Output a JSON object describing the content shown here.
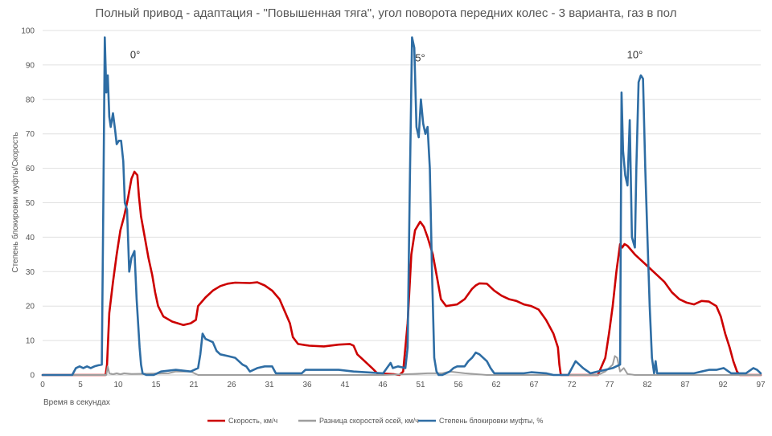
{
  "chart_data": {
    "type": "line",
    "title": "Полный привод - адаптация - \"Повышенная тяга\",  угол поворота передних колес  - 3 варианта, газ в пол",
    "xlabel": "Время в секундах",
    "ylabel": "Степень блокировки муфты/Скорость",
    "xlim": [
      0,
      97
    ],
    "ylim": [
      0,
      100
    ],
    "x_ticks": [
      0,
      5,
      10,
      15,
      21,
      26,
      31,
      36,
      41,
      46,
      51,
      56,
      62,
      67,
      72,
      77,
      82,
      87,
      92,
      97
    ],
    "y_ticks": [
      0,
      10,
      20,
      30,
      40,
      50,
      60,
      70,
      80,
      90,
      100
    ],
    "grid": "horizontal",
    "legend_position": "bottom",
    "annotations": [
      {
        "text": "0°",
        "x": 12.5,
        "y": 92
      },
      {
        "text": "5°",
        "x": 51,
        "y": 91
      },
      {
        "text": "10°",
        "x": 80,
        "y": 92
      }
    ],
    "series": [
      {
        "name": "Скорость, км/ч",
        "color": "#cc0000",
        "points": [
          [
            0,
            0
          ],
          [
            8.5,
            0
          ],
          [
            8.7,
            3
          ],
          [
            9,
            18
          ],
          [
            9.5,
            27
          ],
          [
            10,
            35
          ],
          [
            10.5,
            42
          ],
          [
            11,
            46
          ],
          [
            11.5,
            51
          ],
          [
            12,
            57
          ],
          [
            12.4,
            59
          ],
          [
            12.8,
            58
          ],
          [
            13,
            52
          ],
          [
            13.3,
            46
          ],
          [
            13.8,
            40
          ],
          [
            14.3,
            34
          ],
          [
            14.8,
            29
          ],
          [
            15.2,
            24
          ],
          [
            15.6,
            20
          ],
          [
            16.3,
            17
          ],
          [
            17.5,
            15.5
          ],
          [
            19,
            14.5
          ],
          [
            20,
            15
          ],
          [
            20.7,
            16
          ],
          [
            21,
            20
          ],
          [
            22,
            22.5
          ],
          [
            23,
            24.5
          ],
          [
            24,
            25.8
          ],
          [
            25,
            26.5
          ],
          [
            26,
            26.8
          ],
          [
            28,
            26.7
          ],
          [
            29,
            26.9
          ],
          [
            30,
            26
          ],
          [
            31,
            24.5
          ],
          [
            32,
            22
          ],
          [
            32.8,
            18
          ],
          [
            33.4,
            15
          ],
          [
            33.8,
            11
          ],
          [
            34.5,
            9
          ],
          [
            36,
            8.5
          ],
          [
            38,
            8.3
          ],
          [
            40,
            8.8
          ],
          [
            41.5,
            9
          ],
          [
            42,
            8.5
          ],
          [
            42.5,
            6
          ],
          [
            43.5,
            4
          ],
          [
            44.5,
            2
          ],
          [
            45.2,
            0.5
          ],
          [
            47.5,
            0.2
          ],
          [
            48.2,
            0
          ],
          [
            48.7,
            1
          ],
          [
            49.3,
            15
          ],
          [
            49.8,
            35
          ],
          [
            50.3,
            42
          ],
          [
            51,
            44.5
          ],
          [
            51.5,
            43
          ],
          [
            52,
            40
          ],
          [
            52.7,
            35
          ],
          [
            53.3,
            28
          ],
          [
            53.8,
            22
          ],
          [
            54.5,
            20
          ],
          [
            56,
            20.5
          ],
          [
            57,
            22
          ],
          [
            58,
            25
          ],
          [
            58.5,
            26
          ],
          [
            59,
            26.6
          ],
          [
            60,
            26.5
          ],
          [
            61,
            24.5
          ],
          [
            62,
            23
          ],
          [
            63,
            22
          ],
          [
            64,
            21.5
          ],
          [
            65,
            20.5
          ],
          [
            66,
            20
          ],
          [
            67,
            19
          ],
          [
            68,
            16
          ],
          [
            69,
            12
          ],
          [
            69.6,
            8
          ],
          [
            69.8,
            3
          ],
          [
            70,
            0
          ],
          [
            75,
            0
          ],
          [
            76,
            5
          ],
          [
            76.5,
            12
          ],
          [
            77,
            20
          ],
          [
            77.5,
            30
          ],
          [
            78,
            38
          ],
          [
            78.3,
            37
          ],
          [
            78.6,
            38
          ],
          [
            79,
            37.5
          ],
          [
            80,
            35
          ],
          [
            81,
            33
          ],
          [
            82,
            31
          ],
          [
            83,
            29
          ],
          [
            84,
            27
          ],
          [
            85,
            24
          ],
          [
            86,
            22
          ],
          [
            87,
            21
          ],
          [
            88,
            20.5
          ],
          [
            88.5,
            21
          ],
          [
            89,
            21.5
          ],
          [
            90,
            21.3
          ],
          [
            91,
            20
          ],
          [
            91.6,
            17
          ],
          [
            92.2,
            12
          ],
          [
            92.8,
            8
          ],
          [
            93.3,
            4
          ],
          [
            93.8,
            1
          ],
          [
            94.2,
            0
          ],
          [
            97,
            0
          ]
        ]
      },
      {
        "name": "Разница скоростей осей, км/ч",
        "color": "#9e9e9e",
        "points": [
          [
            0,
            0
          ],
          [
            8.6,
            0
          ],
          [
            8.8,
            2.5
          ],
          [
            9,
            0.5
          ],
          [
            9.5,
            0.2
          ],
          [
            10,
            0.5
          ],
          [
            10.5,
            0.2
          ],
          [
            11,
            0.5
          ],
          [
            12,
            0.3
          ],
          [
            17,
            0.5
          ],
          [
            18,
            1
          ],
          [
            19,
            1
          ],
          [
            20,
            1
          ],
          [
            20.5,
            0.5
          ],
          [
            21,
            0
          ],
          [
            46,
            0
          ],
          [
            50,
            0.3
          ],
          [
            52,
            0.5
          ],
          [
            54,
            0.5
          ],
          [
            55,
            1
          ],
          [
            57,
            0.5
          ],
          [
            60,
            0
          ],
          [
            75,
            0
          ],
          [
            76,
            1
          ],
          [
            77,
            3
          ],
          [
            77.3,
            5.5
          ],
          [
            77.6,
            5
          ],
          [
            78,
            1
          ],
          [
            78.5,
            2
          ],
          [
            79,
            0.3
          ],
          [
            80,
            0
          ],
          [
            97,
            0
          ]
        ]
      },
      {
        "name": "Степень блокировки муфты, %",
        "color": "#2e6da4",
        "points": [
          [
            0,
            0
          ],
          [
            4,
            0
          ],
          [
            4.5,
            2
          ],
          [
            5,
            2.5
          ],
          [
            5.5,
            2
          ],
          [
            6,
            2.5
          ],
          [
            6.5,
            2
          ],
          [
            7,
            2.5
          ],
          [
            7.5,
            2.8
          ],
          [
            8,
            3
          ],
          [
            8.2,
            50
          ],
          [
            8.4,
            98
          ],
          [
            8.6,
            82
          ],
          [
            8.8,
            87
          ],
          [
            9,
            75
          ],
          [
            9.2,
            72
          ],
          [
            9.5,
            76
          ],
          [
            9.8,
            71
          ],
          [
            10,
            67
          ],
          [
            10.3,
            68
          ],
          [
            10.6,
            68
          ],
          [
            10.9,
            62
          ],
          [
            11.1,
            50
          ],
          [
            11.4,
            48
          ],
          [
            11.7,
            30
          ],
          [
            12,
            34
          ],
          [
            12.4,
            36
          ],
          [
            12.7,
            22
          ],
          [
            13.1,
            8
          ],
          [
            13.3,
            3
          ],
          [
            13.5,
            0.5
          ],
          [
            14,
            0
          ],
          [
            15,
            0
          ],
          [
            16,
            1
          ],
          [
            18,
            1.5
          ],
          [
            20,
            1
          ],
          [
            21,
            2
          ],
          [
            21.3,
            6
          ],
          [
            21.6,
            12
          ],
          [
            22,
            10.5
          ],
          [
            22.5,
            10
          ],
          [
            23,
            9.5
          ],
          [
            23.5,
            7
          ],
          [
            24,
            6
          ],
          [
            25,
            5.5
          ],
          [
            26,
            5
          ],
          [
            27,
            3
          ],
          [
            27.5,
            2.5
          ],
          [
            28,
            1
          ],
          [
            29,
            2
          ],
          [
            30,
            2.5
          ],
          [
            31,
            2.5
          ],
          [
            31.5,
            0.5
          ],
          [
            35,
            0.5
          ],
          [
            35.5,
            1.5
          ],
          [
            37,
            1.5
          ],
          [
            40,
            1.5
          ],
          [
            42,
            1
          ],
          [
            46,
            0.5
          ],
          [
            46.5,
            2
          ],
          [
            47,
            3.5
          ],
          [
            47.3,
            2
          ],
          [
            48,
            2.5
          ],
          [
            49,
            2
          ],
          [
            49.3,
            8
          ],
          [
            49.6,
            55
          ],
          [
            49.9,
            98
          ],
          [
            50.2,
            95
          ],
          [
            50.5,
            72
          ],
          [
            50.8,
            69
          ],
          [
            51.1,
            80
          ],
          [
            51.4,
            73
          ],
          [
            51.7,
            70
          ],
          [
            52,
            72
          ],
          [
            52.3,
            60
          ],
          [
            52.6,
            30
          ],
          [
            52.9,
            5
          ],
          [
            53.2,
            1
          ],
          [
            53.5,
            0
          ],
          [
            54,
            0
          ],
          [
            55,
            1
          ],
          [
            55.5,
            2
          ],
          [
            56,
            2.5
          ],
          [
            57,
            2.5
          ],
          [
            57.5,
            4
          ],
          [
            58,
            5
          ],
          [
            58.5,
            6.5
          ],
          [
            59,
            6
          ],
          [
            59.5,
            5
          ],
          [
            60,
            4
          ],
          [
            60.5,
            2
          ],
          [
            61,
            0.5
          ],
          [
            65,
            0.5
          ],
          [
            66,
            0.8
          ],
          [
            68,
            0.5
          ],
          [
            69,
            0
          ],
          [
            71,
            0
          ],
          [
            71.5,
            2
          ],
          [
            72,
            4
          ],
          [
            73,
            2
          ],
          [
            74,
            0.5
          ],
          [
            75,
            1
          ],
          [
            76,
            1.5
          ],
          [
            77,
            2
          ],
          [
            78,
            3
          ],
          [
            78.2,
            82
          ],
          [
            78.4,
            65
          ],
          [
            78.7,
            58
          ],
          [
            79,
            55
          ],
          [
            79.3,
            74
          ],
          [
            79.6,
            40
          ],
          [
            80,
            37
          ],
          [
            80.2,
            60
          ],
          [
            80.5,
            85
          ],
          [
            80.8,
            87
          ],
          [
            81.1,
            86
          ],
          [
            81.4,
            60
          ],
          [
            81.7,
            40
          ],
          [
            82,
            20
          ],
          [
            82.3,
            5
          ],
          [
            82.6,
            0.5
          ],
          [
            82.8,
            4
          ],
          [
            83,
            0.5
          ],
          [
            85,
            0.5
          ],
          [
            88,
            0.5
          ],
          [
            89,
            1
          ],
          [
            90,
            1.5
          ],
          [
            91,
            1.5
          ],
          [
            92,
            2
          ],
          [
            93,
            0.5
          ],
          [
            94,
            0.5
          ],
          [
            95,
            0.5
          ],
          [
            96,
            2
          ],
          [
            96.5,
            1.5
          ],
          [
            97,
            0.5
          ]
        ]
      }
    ]
  }
}
